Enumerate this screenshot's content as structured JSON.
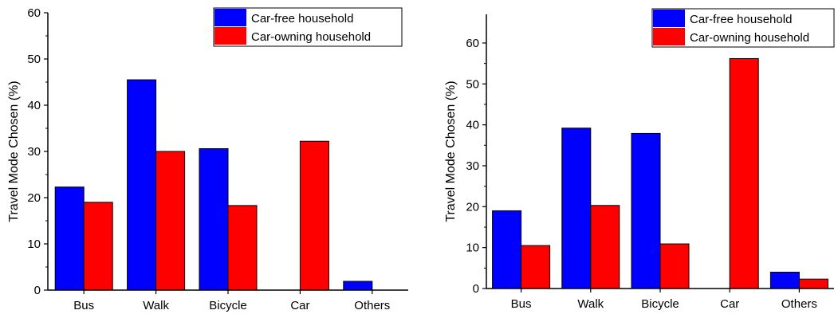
{
  "colors": {
    "car_free": "#0000ff",
    "car_owning": "#ff0000"
  },
  "chart_data": [
    {
      "type": "bar",
      "title": "",
      "xlabel": "",
      "ylabel": "Travel Mode Chosen (%)",
      "ylim": [
        0,
        60
      ],
      "yticks": [
        0,
        10,
        20,
        30,
        40,
        50,
        60
      ],
      "categories": [
        "Bus",
        "Walk",
        "Bicycle",
        "Car",
        "Others"
      ],
      "legend_position": "top-right",
      "series": [
        {
          "name": "Car-free household",
          "color": "#0000ff",
          "values": [
            22.3,
            45.5,
            30.6,
            0,
            1.9
          ]
        },
        {
          "name": "Car-owning household",
          "color": "#ff0000",
          "values": [
            19.0,
            30.0,
            18.3,
            32.2,
            0
          ]
        }
      ]
    },
    {
      "type": "bar",
      "title": "",
      "xlabel": "",
      "ylabel": "Travel Mode Chosen (%)",
      "ylim": [
        0,
        67
      ],
      "yticks": [
        0,
        10,
        20,
        30,
        40,
        50,
        60
      ],
      "categories": [
        "Bus",
        "Walk",
        "Bicycle",
        "Car",
        "Others"
      ],
      "legend_position": "top-right",
      "series": [
        {
          "name": "Car-free household",
          "color": "#0000ff",
          "values": [
            19.0,
            39.2,
            37.9,
            0,
            4.0
          ]
        },
        {
          "name": "Car-owning household",
          "color": "#ff0000",
          "values": [
            10.5,
            20.3,
            10.9,
            56.2,
            2.3
          ]
        }
      ]
    }
  ]
}
